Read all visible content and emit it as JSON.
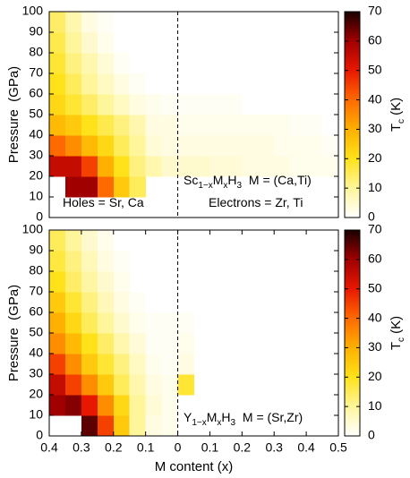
{
  "chart_data": [
    {
      "type": "heatmap",
      "ylabel": "Pressure  (GPa)",
      "x_edges": [
        -0.4,
        -0.35,
        -0.3,
        -0.25,
        -0.2,
        -0.15,
        -0.1,
        -0.05,
        0,
        0.05,
        0.1,
        0.15,
        0.2,
        0.25,
        0.3,
        0.35,
        0.4,
        0.45,
        0.5
      ],
      "y_edges": [
        0,
        10,
        20,
        30,
        40,
        50,
        60,
        70,
        80,
        90,
        100
      ],
      "z": [
        [
          null,
          null,
          null,
          null,
          null,
          null,
          null,
          null,
          null,
          null,
          null,
          null,
          null,
          null,
          null,
          null,
          null,
          null
        ],
        [
          null,
          60,
          60,
          40,
          25,
          15,
          null,
          null,
          null,
          null,
          null,
          null,
          null,
          null,
          null,
          null,
          null,
          null
        ],
        [
          55,
          55,
          45,
          30,
          20,
          12,
          8,
          5,
          5,
          5,
          4,
          4,
          3,
          3,
          3,
          2,
          2,
          2
        ],
        [
          40,
          35,
          28,
          22,
          15,
          10,
          4,
          3,
          3,
          3,
          3,
          3,
          3,
          3,
          2,
          2,
          2,
          1
        ],
        [
          28,
          25,
          20,
          16,
          12,
          8,
          3,
          3,
          2,
          2,
          2,
          2,
          2,
          2,
          2,
          1,
          1,
          null
        ],
        [
          22,
          18,
          14,
          10,
          6,
          3,
          2,
          1,
          1,
          1,
          1,
          1,
          null,
          null,
          null,
          null,
          null,
          null
        ],
        [
          20,
          15,
          10,
          6,
          3,
          1,
          null,
          null,
          null,
          null,
          null,
          null,
          null,
          null,
          null,
          null,
          null,
          null
        ],
        [
          18,
          12,
          8,
          4,
          1,
          null,
          null,
          null,
          null,
          null,
          null,
          null,
          null,
          null,
          null,
          null,
          null,
          null
        ],
        [
          16,
          10,
          5,
          2,
          null,
          null,
          null,
          null,
          null,
          null,
          null,
          null,
          null,
          null,
          null,
          null,
          null,
          null
        ],
        [
          14,
          8,
          3,
          1,
          null,
          null,
          null,
          null,
          null,
          null,
          null,
          null,
          null,
          null,
          null,
          null,
          null,
          null
        ]
      ],
      "xlim": [
        -0.4,
        0.5
      ],
      "ylim": [
        0,
        100
      ],
      "yticks": [
        0,
        10,
        20,
        30,
        40,
        50,
        60,
        70,
        80,
        90,
        100
      ],
      "zlim": [
        0,
        70
      ],
      "zticks": [
        0,
        10,
        20,
        30,
        40,
        50,
        60,
        70
      ],
      "colormap": [
        "#ffffff",
        "#fff59a",
        "#ffe21a",
        "#ffb000",
        "#ff6a00",
        "#e81800",
        "#a00000",
        "#1a0000"
      ],
      "colorbar_label": [
        {
          "text": "T"
        },
        {
          "text": "c",
          "sub": true
        },
        {
          "text": " (K)"
        }
      ],
      "reference_line_x": 0,
      "annotations": [
        [
          {
            "text": "Holes = Sr, Ca"
          }
        ],
        [
          {
            "text": "Sc"
          },
          {
            "text": "1−x",
            "sub": true
          },
          {
            "text": "M"
          },
          {
            "text": "x",
            "sub": true
          },
          {
            "text": "H"
          },
          {
            "text": "3",
            "sub": true
          },
          {
            "text": "  M = (Ca,Ti)"
          }
        ],
        [
          {
            "text": "Electrons = Zr, Ti"
          }
        ]
      ]
    },
    {
      "type": "heatmap",
      "ylabel": "Pressure  (GPa)",
      "xlabel": "M content (x)",
      "x_edges": [
        -0.4,
        -0.35,
        -0.3,
        -0.25,
        -0.2,
        -0.15,
        -0.1,
        -0.05,
        0,
        0.05,
        0.1,
        0.15,
        0.2,
        0.25,
        0.3,
        0.35,
        0.4,
        0.45,
        0.5
      ],
      "y_edges": [
        0,
        10,
        20,
        30,
        40,
        50,
        60,
        70,
        80,
        90,
        100
      ],
      "z": [
        [
          null,
          null,
          65,
          45,
          25,
          10,
          3,
          2,
          null,
          null,
          null,
          null,
          null,
          null,
          null,
          null,
          null,
          null
        ],
        [
          60,
          62,
          50,
          35,
          22,
          10,
          4,
          2,
          null,
          null,
          null,
          null,
          null,
          null,
          null,
          null,
          null,
          null
        ],
        [
          55,
          45,
          35,
          25,
          15,
          8,
          3,
          2,
          18,
          null,
          null,
          null,
          null,
          null,
          null,
          null,
          null,
          null
        ],
        [
          45,
          35,
          25,
          18,
          12,
          6,
          2,
          1,
          3,
          null,
          null,
          null,
          null,
          null,
          null,
          null,
          null,
          null
        ],
        [
          35,
          28,
          20,
          14,
          8,
          4,
          1,
          1,
          2,
          null,
          null,
          null,
          null,
          null,
          null,
          null,
          null,
          null
        ],
        [
          30,
          22,
          15,
          10,
          5,
          2,
          1,
          1,
          1,
          null,
          null,
          null,
          null,
          null,
          null,
          null,
          null,
          null
        ],
        [
          25,
          18,
          12,
          7,
          3,
          1,
          null,
          null,
          null,
          null,
          null,
          null,
          null,
          null,
          null,
          null,
          null,
          null
        ],
        [
          20,
          14,
          9,
          5,
          2,
          null,
          null,
          null,
          null,
          null,
          null,
          null,
          null,
          null,
          null,
          null,
          null,
          null
        ],
        [
          17,
          12,
          7,
          3,
          1,
          null,
          null,
          null,
          null,
          null,
          null,
          null,
          null,
          null,
          null,
          null,
          null,
          null
        ],
        [
          15,
          10,
          5,
          2,
          null,
          null,
          null,
          null,
          null,
          null,
          null,
          null,
          null,
          null,
          null,
          null,
          null,
          null
        ]
      ],
      "xlim": [
        -0.4,
        0.5
      ],
      "xticks": [
        {
          "value": -0.4,
          "label": "0.4"
        },
        {
          "value": -0.3,
          "label": "0.3"
        },
        {
          "value": -0.2,
          "label": "0.2"
        },
        {
          "value": -0.1,
          "label": "0.1"
        },
        0,
        0.1,
        0.2,
        0.3,
        0.4,
        0.5
      ],
      "ylim": [
        0,
        100
      ],
      "yticks": [
        0,
        10,
        20,
        30,
        40,
        50,
        60,
        70,
        80,
        90,
        100
      ],
      "zlim": [
        0,
        70
      ],
      "zticks": [
        0,
        10,
        20,
        30,
        40,
        50,
        60,
        70
      ],
      "colormap": [
        "#ffffff",
        "#fff59a",
        "#ffe21a",
        "#ffb000",
        "#ff6a00",
        "#e81800",
        "#a00000",
        "#1a0000"
      ],
      "colorbar_label": [
        {
          "text": "T"
        },
        {
          "text": "c",
          "sub": true
        },
        {
          "text": " (K)"
        }
      ],
      "reference_line_x": 0,
      "annotations": [
        [
          {
            "text": "Y"
          },
          {
            "text": "1−x",
            "sub": true
          },
          {
            "text": "M"
          },
          {
            "text": "x",
            "sub": true
          },
          {
            "text": "H"
          },
          {
            "text": "3",
            "sub": true
          },
          {
            "text": "  M = (Sr,Zr)"
          }
        ]
      ]
    }
  ]
}
